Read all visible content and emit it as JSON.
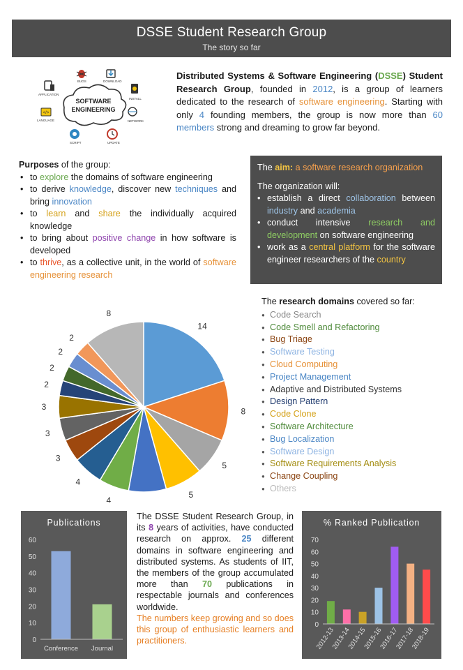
{
  "header": {
    "title": "DSSE Student Research Group",
    "subtitle": "The story so far"
  },
  "logo": {
    "center_text_1": "SOFTWARE",
    "center_text_2": "ENGINEERING",
    "labels": [
      "APPLICATION",
      "BUGS",
      "DOWNLOAD",
      "INSTALL",
      "NETWORK",
      "UPDATE",
      "SCRIPT",
      "LANGUAGE"
    ]
  },
  "intro": {
    "org_name_1": "Distributed Systems & Software Engineering (",
    "acronym": "DSSE",
    "org_name_2": ") Student Research Group",
    "t1": ", founded in ",
    "year": "2012",
    "t2": ", is a group of learners dedicated to the research of ",
    "field": "software engineering",
    "t3": ". Starting with only ",
    "founders": "4",
    "t4": " founding members, the group is now more than ",
    "members": "60 members",
    "t5": " strong and dreaming to grow far beyond."
  },
  "purposes": {
    "heading": "Purposes",
    "heading_rest": " of the group:",
    "items": [
      {
        "a": "to ",
        "h": "explore",
        "b": " the domains of software engineering"
      },
      {
        "a": "to derive ",
        "h": "knowledge",
        "b": ", discover new ",
        "h2": "techniques",
        "c": " and bring ",
        "h3": "innovation"
      },
      {
        "a": "to ",
        "h": "learn",
        "b": " and ",
        "h2": "share",
        "c": " the individually acquired knowledge"
      },
      {
        "a": "to bring about ",
        "h": "positive change",
        "b": " in how software is developed"
      },
      {
        "a": "to ",
        "h": "thrive",
        "b": ", as a collective unit, in the world of ",
        "h2": "software engineering research"
      }
    ]
  },
  "aim": {
    "title_a": "The ",
    "title_b": "aim:",
    "title_c": " a software research organization",
    "will": "The organization will:",
    "items": [
      {
        "a": "establish a direct ",
        "h": "collaboration",
        "b": " between ",
        "h2": "industry",
        "c": " and ",
        "h3": "academia"
      },
      {
        "a": "conduct intensive ",
        "h": "research and development",
        "b": " on software engineering"
      },
      {
        "a": "work as a ",
        "h": "central platform",
        "b": " for the software engineer researchers of the ",
        "h2": "country"
      }
    ]
  },
  "domains": {
    "head_a": "The ",
    "head_b": "research domains",
    "head_c": " covered so far:",
    "items": [
      "Code Search",
      "Code Smell and Refactoring",
      "Bug Triage",
      "Software Testing",
      "Cloud Computing",
      "Project Management",
      "Adaptive and Distributed Systems",
      "Design Pattern",
      "Code Clone",
      "Software Architecture",
      "Bug Localization",
      "Software Design",
      "Software Requirements Analysis",
      "Change Coupling",
      "Others"
    ]
  },
  "summary": {
    "t1": "The DSSE Student Research Group, in its ",
    "years": "8",
    "t2": " years of activities, have conducted research on approx. ",
    "domains": "25",
    "t3": " different domains in software engineering and distributed systems. As students of IIT, the members of the group accumulated more than ",
    "pubs": "70",
    "t4": " publications in respectable journals and conferences worldwide.",
    "closing": "The numbers keep growing and so does this group of enthusiastic learners and practitioners."
  },
  "colors": {
    "panel": "#4d4d4d",
    "pub_conference": "#8eaadb",
    "pub_journal": "#a9d18e"
  },
  "chart_data": [
    {
      "type": "pie",
      "title": "",
      "categories": [
        "Code Search",
        "Code Smell and Refactoring",
        "Bug Triage",
        "Software Testing",
        "Cloud Computing",
        "Project Management",
        "Adaptive and Distributed Systems",
        "Design Pattern",
        "Code Clone",
        "Software Architecture",
        "Bug Localization",
        "Software Design",
        "Software Requirements Analysis",
        "Change Coupling",
        "Others"
      ],
      "values": [
        14,
        8,
        5,
        5,
        5,
        4,
        4,
        3,
        3,
        3,
        2,
        2,
        2,
        2,
        8
      ],
      "colors": [
        "#5b9bd5",
        "#ed7d31",
        "#a5a5a5",
        "#ffc000",
        "#4472c4",
        "#70ad47",
        "#255e91",
        "#9e480e",
        "#636363",
        "#997300",
        "#264478",
        "#43682b",
        "#698ed0",
        "#f1975a",
        "#b7b7b7"
      ]
    },
    {
      "type": "bar",
      "title": "Publications",
      "categories": [
        "Conference",
        "Journal"
      ],
      "values": [
        53,
        21
      ],
      "ylim": [
        0,
        60
      ],
      "yticks": [
        0,
        10,
        20,
        30,
        40,
        50,
        60
      ],
      "grid": false
    },
    {
      "type": "bar",
      "title": "% Ranked Publication",
      "categories": [
        "2012-13",
        "2013-14",
        "2014-15",
        "2015-16",
        "2016-17",
        "2017-18",
        "2018-19"
      ],
      "values": [
        19,
        12,
        10,
        30,
        64,
        50,
        45
      ],
      "colors": [
        "#70ad47",
        "#ff6fa8",
        "#c9a227",
        "#9dc3e6",
        "#a05cf2",
        "#f4b183",
        "#ff4b4b"
      ],
      "ylim": [
        0,
        70
      ],
      "yticks": [
        0,
        10,
        20,
        30,
        40,
        50,
        60,
        70
      ],
      "grid": false
    }
  ]
}
